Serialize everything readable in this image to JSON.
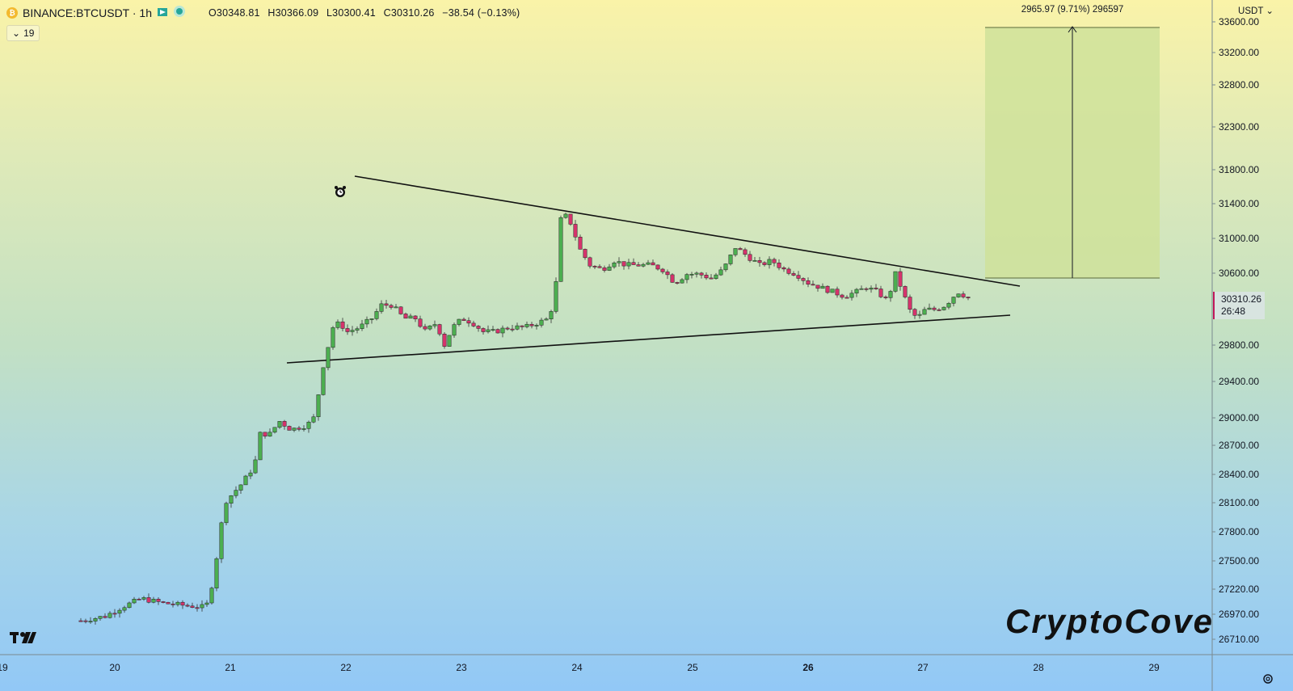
{
  "header": {
    "symbol": "BINANCE:BTCUSDT · 1h",
    "open": "O30348.81",
    "high": "H30366.09",
    "low": "L30300.41",
    "close": "C30310.26",
    "change": "−38.54 (−0.13%)",
    "indicator_count": "19"
  },
  "axis": {
    "currency": "USDT",
    "price_ticks": [
      "33600.00",
      "33200.00",
      "32800.00",
      "32300.00",
      "31800.00",
      "31400.00",
      "31000.00",
      "30600.00",
      "29800.00",
      "29400.00",
      "29000.00",
      "28700.00",
      "28400.00",
      "28100.00",
      "27800.00",
      "27500.00",
      "27220.00",
      "26970.00",
      "26710.00"
    ],
    "time_ticks": [
      "19",
      "20",
      "21",
      "22",
      "23",
      "24",
      "25",
      "26",
      "27",
      "28",
      "29"
    ],
    "last_price": "30310.26",
    "countdown": "26:48"
  },
  "measure": {
    "label": "2965.97 (9.71%) 296597"
  },
  "watermark": "CryptoCove",
  "colors": {
    "up": "#4caf50",
    "down": "#d6336c",
    "measure_fill": "#cfe29a",
    "line": "#111111"
  },
  "icons": {
    "alarm": "alarm-clock-icon",
    "settings": "gear-icon",
    "logo": "tradingview-logo-icon"
  }
}
